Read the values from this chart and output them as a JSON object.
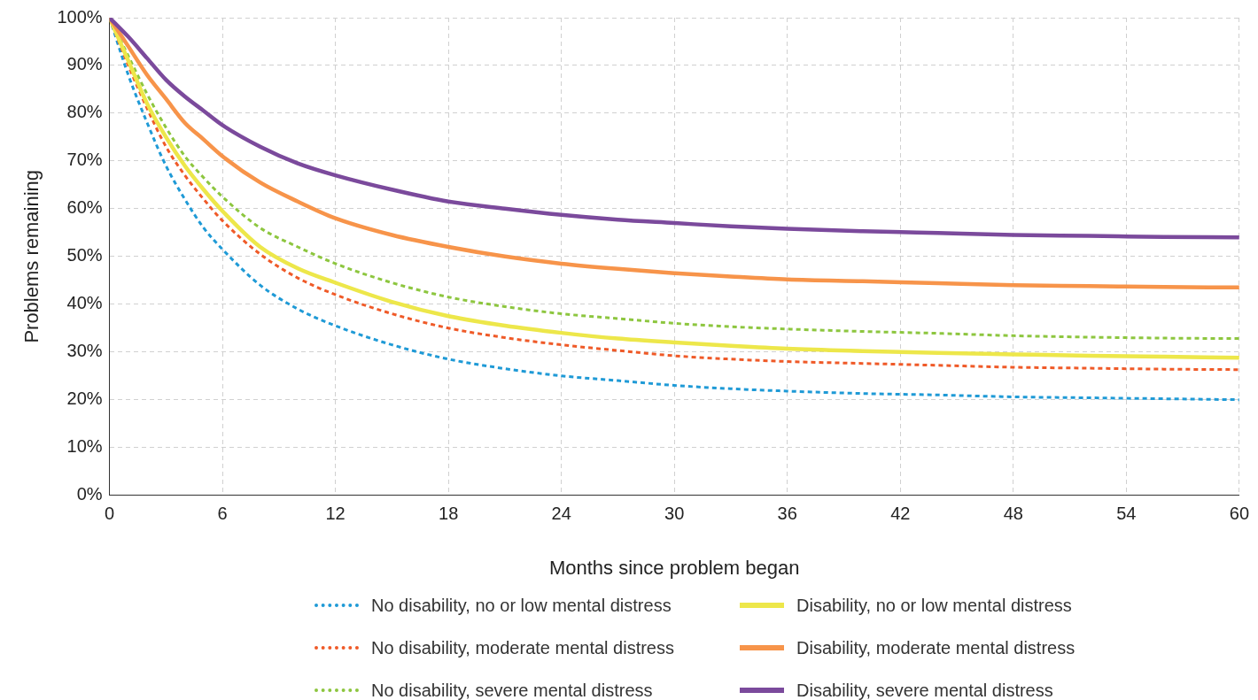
{
  "chart_data": {
    "type": "line",
    "xlabel": "Months since problem began",
    "ylabel": "Problems remaining",
    "x": [
      0,
      1,
      2,
      3,
      4,
      5,
      6,
      8,
      10,
      12,
      15,
      18,
      21,
      24,
      27,
      30,
      33,
      36,
      40,
      44,
      48,
      52,
      56,
      60
    ],
    "xlim": [
      0,
      60
    ],
    "xticks": [
      0,
      6,
      12,
      18,
      24,
      30,
      36,
      42,
      48,
      54,
      60
    ],
    "ylim": [
      0,
      100
    ],
    "yticks": [
      {
        "value": 0,
        "label": "0%"
      },
      {
        "value": 10,
        "label": "10%"
      },
      {
        "value": 20,
        "label": "20%"
      },
      {
        "value": 30,
        "label": "30%"
      },
      {
        "value": 40,
        "label": "40%"
      },
      {
        "value": 50,
        "label": "50%"
      },
      {
        "value": 60,
        "label": "60%"
      },
      {
        "value": 70,
        "label": "70%"
      },
      {
        "value": 80,
        "label": "80%"
      },
      {
        "value": 90,
        "label": "90%"
      },
      {
        "value": 100,
        "label": "100%"
      }
    ],
    "grid": true,
    "legend": "bottom",
    "marker": "none",
    "series": [
      {
        "name": "No disability, no or low mental distress",
        "color": "#1f9ad6",
        "line_style": "dashed",
        "values": [
          100,
          88,
          78,
          69,
          62,
          56,
          51.5,
          44,
          39,
          35.5,
          31.5,
          28.5,
          26.5,
          25,
          24,
          23,
          22.3,
          21.8,
          21.3,
          21,
          20.6,
          20.4,
          20.2,
          20
        ]
      },
      {
        "name": "No disability, moderate mental distress",
        "color": "#ef5a28",
        "line_style": "dashed",
        "values": [
          100,
          90,
          81,
          73,
          67,
          62,
          57.5,
          50.5,
          45.5,
          42,
          38,
          35,
          33,
          31.5,
          30.3,
          29.2,
          28.5,
          28,
          27.6,
          27.2,
          26.8,
          26.6,
          26.4,
          26.3
        ]
      },
      {
        "name": "No disability, severe mental distress",
        "color": "#8dc63f",
        "line_style": "dashed",
        "values": [
          100,
          92,
          84,
          77,
          71,
          66.5,
          62.5,
          56,
          52,
          48.5,
          44.5,
          41.5,
          39.5,
          38,
          37,
          36,
          35.3,
          34.8,
          34.3,
          33.9,
          33.4,
          33.1,
          32.9,
          32.8
        ]
      },
      {
        "name": "Disability, no or low mental distress",
        "color": "#ede74a",
        "line_style": "solid",
        "values": [
          100,
          91,
          82,
          75,
          69,
          64,
          59.5,
          52,
          47.5,
          44.5,
          40.5,
          37.5,
          35.5,
          34,
          32.8,
          32,
          31.3,
          30.7,
          30.2,
          29.8,
          29.5,
          29.2,
          29,
          28.8
        ]
      },
      {
        "name": "Disability, moderate mental distress",
        "color": "#f7944a",
        "line_style": "solid",
        "values": [
          100,
          94,
          88,
          83,
          78,
          74.5,
          71,
          65.5,
          61.5,
          58,
          54.5,
          52,
          50,
          48.5,
          47.4,
          46.5,
          45.8,
          45.2,
          44.8,
          44.4,
          44,
          43.8,
          43.6,
          43.5
        ]
      },
      {
        "name": "Disability, severe mental distress",
        "color": "#7b4a9c",
        "line_style": "solid",
        "values": [
          100,
          96,
          91.5,
          87,
          83.5,
          80.5,
          77.5,
          73,
          69.5,
          67,
          64,
          61.5,
          60,
          58.7,
          57.7,
          57,
          56.3,
          55.8,
          55.3,
          54.9,
          54.5,
          54.3,
          54.1,
          54
        ]
      }
    ]
  }
}
